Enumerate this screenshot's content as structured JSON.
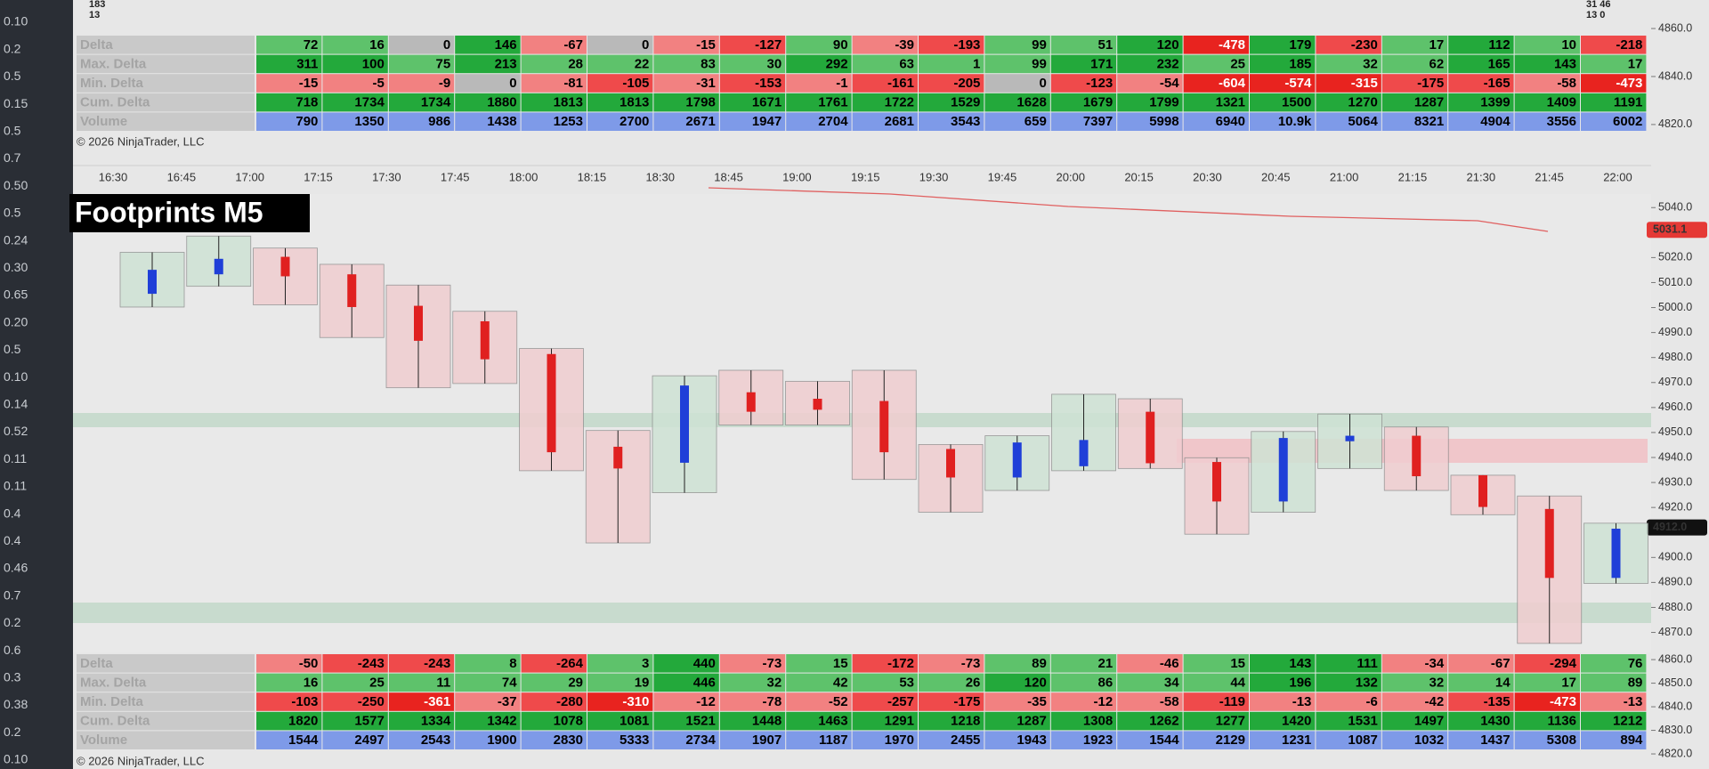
{
  "title": "Footprints M5",
  "copyright": "© 2026 NinjaTrader, LLC",
  "top_left_counts": [
    "183",
    "13"
  ],
  "top_right_counts": [
    "31 46",
    "13 0"
  ],
  "left_labels": [
    "0.10",
    "0.2",
    "0.5",
    "0.15",
    "0.5",
    "0.7",
    "0.50",
    "0.5",
    "0.24",
    "0.30",
    "0.65",
    "0.20",
    "0.5",
    "0.10",
    "0.14",
    "0.52",
    "0.11",
    "0.11",
    "0.4",
    "0.4",
    "0.46",
    "0.7",
    "0.2",
    "0.6",
    "0.3",
    "0.38",
    "0.2",
    "0.10"
  ],
  "top_table": {
    "row_labels": [
      "Delta",
      "Max. Delta",
      "Min. Delta",
      "Cum. Delta",
      "Volume"
    ],
    "rows": [
      [
        72,
        16,
        0,
        146,
        -67,
        0,
        -15,
        -127,
        90,
        -39,
        -193,
        99,
        51,
        120,
        -478,
        179,
        -230,
        17,
        112,
        10,
        -218
      ],
      [
        311,
        100,
        75,
        213,
        28,
        22,
        83,
        30,
        292,
        63,
        1,
        99,
        171,
        232,
        25,
        185,
        32,
        62,
        165,
        143,
        17
      ],
      [
        -15,
        -5,
        -9,
        0,
        -81,
        -105,
        -31,
        -153,
        -1,
        -161,
        -205,
        0,
        -123,
        -54,
        -604,
        -574,
        -315,
        -175,
        -165,
        -58,
        -473
      ],
      [
        718,
        1734,
        1734,
        1880,
        1813,
        1813,
        1798,
        1671,
        1761,
        1722,
        1529,
        1628,
        1679,
        1799,
        1321,
        1500,
        1270,
        1287,
        1399,
        1409,
        1191
      ],
      [
        790,
        1350,
        986,
        1438,
        1253,
        2700,
        2671,
        1947,
        2704,
        2681,
        3543,
        659,
        7397,
        5998,
        6940,
        {
          "value": 10900,
          "label": "10.9k"
        },
        5064,
        8321,
        4904,
        3556,
        6002
      ]
    ],
    "ylim": [
      4817,
      4861.5
    ],
    "yticks": [
      {
        "value": 4860,
        "label": "4860.0"
      },
      {
        "value": 4840,
        "label": "4840.0"
      },
      {
        "value": 4820,
        "label": "4820.0"
      }
    ]
  },
  "bottom_table": {
    "row_labels": [
      "Delta",
      "Max. Delta",
      "Min. Delta",
      "Cum. Delta",
      "Volume"
    ],
    "rows": [
      [
        -50,
        -243,
        -243,
        8,
        -264,
        3,
        440,
        -73,
        15,
        -172,
        -73,
        89,
        21,
        -46,
        15,
        143,
        111,
        -34,
        -67,
        -294,
        76
      ],
      [
        16,
        25,
        11,
        74,
        29,
        19,
        446,
        32,
        42,
        53,
        26,
        120,
        86,
        34,
        44,
        196,
        132,
        32,
        14,
        17,
        89
      ],
      [
        -103,
        -250,
        -361,
        -37,
        -280,
        -310,
        -12,
        -78,
        -52,
        -257,
        -175,
        -35,
        -12,
        -58,
        -119,
        -13,
        -6,
        -42,
        -135,
        -473,
        -13
      ],
      [
        1820,
        1577,
        1334,
        1342,
        1078,
        1081,
        1521,
        1448,
        1463,
        1291,
        1218,
        1287,
        1308,
        1262,
        1277,
        1420,
        1531,
        1497,
        1430,
        1136,
        1212
      ],
      [
        1544,
        2497,
        2543,
        1900,
        2830,
        5333,
        2734,
        1907,
        1187,
        1970,
        2455,
        1943,
        1923,
        1544,
        2129,
        1231,
        1087,
        1032,
        1437,
        5308,
        894
      ]
    ],
    "ylim": [
      4813.6,
      4862.3
    ],
    "yticks": [
      {
        "value": 4860,
        "label": "4860.0"
      },
      {
        "value": 4850,
        "label": "4850.0"
      },
      {
        "value": 4840,
        "label": "4840.0"
      },
      {
        "value": 4830,
        "label": "4830.0"
      },
      {
        "value": 4820,
        "label": "4820.0"
      }
    ]
  },
  "time_labels": [
    "16:30",
    "16:45",
    "17:00",
    "17:15",
    "17:30",
    "17:45",
    "18:00",
    "18:15",
    "18:30",
    "18:45",
    "19:00",
    "19:15",
    "19:30",
    "19:45",
    "20:00",
    "20:15",
    "20:30",
    "20:45",
    "21:00",
    "21:15",
    "21:30",
    "21:45",
    "22:00"
  ],
  "price_axis": {
    "ylim": [
      4862,
      5044
    ],
    "yticks": [
      {
        "value": 5040,
        "label": "5040.0"
      },
      {
        "value": 5020,
        "label": "5020.0"
      },
      {
        "value": 5010,
        "label": "5010.0"
      },
      {
        "value": 5000,
        "label": "5000.0"
      },
      {
        "value": 4990,
        "label": "4990.0"
      },
      {
        "value": 4980,
        "label": "4980.0"
      },
      {
        "value": 4970,
        "label": "4970.0"
      },
      {
        "value": 4960,
        "label": "4960.0"
      },
      {
        "value": 4950,
        "label": "4950.0"
      },
      {
        "value": 4940,
        "label": "4940.0"
      },
      {
        "value": 4930,
        "label": "4930.0"
      },
      {
        "value": 4920,
        "label": "4920.0"
      },
      {
        "value": 4900,
        "label": "4900.0"
      },
      {
        "value": 4890,
        "label": "4890.0"
      },
      {
        "value": 4880,
        "label": "4880.0"
      },
      {
        "value": 4870,
        "label": "4870.0"
      }
    ],
    "markers": [
      {
        "price": 5031.1,
        "color": "#e53935"
      },
      {
        "price": {
          "value": 4912,
          "label": "4912.0"
        },
        "color": "#111111"
      }
    ]
  },
  "candles": {
    "up_color": "#1f3fd8",
    "down_color": "#e02020",
    "open": [
      5005.5,
      5013.3,
      5020.3,
      5013.3,
      5000.7,
      4994.5,
      4981.4,
      4944.3,
      4937.9,
      4966.1,
      4963.5,
      4962.6,
      4943.4,
      4932.0,
      4936.5,
      4958.3,
      4938.2,
      4922.4,
      4946.5,
      4948.7,
      4932.9,
      4919.4,
      4891.8
    ],
    "high": [
      5022.1,
      5028.6,
      5023.8,
      5017.3,
      5009.0,
      4998.5,
      4983.6,
      4950.8,
      4972.7,
      4974.9,
      4970.5,
      4974.9,
      4945.2,
      4948.7,
      4965.3,
      4963.5,
      4939.9,
      4950.4,
      4957.4,
      4952.2,
      4932.9,
      4924.6,
      4913.7
    ],
    "low": [
      5000.2,
      5008.5,
      5001.1,
      4988.0,
      4967.9,
      4969.6,
      4934.7,
      4905.8,
      4925.9,
      4953.0,
      4953.0,
      4931.2,
      4918.1,
      4926.8,
      4934.7,
      4935.6,
      4909.3,
      4918.1,
      4935.6,
      4926.8,
      4917.1,
      4865.6,
      4889.6
    ],
    "close": [
      5015.1,
      5019.5,
      5012.5,
      5000.2,
      4986.7,
      4979.3,
      4942.1,
      4935.6,
      4968.8,
      4958.3,
      4959.1,
      4942.1,
      4932.0,
      4946.0,
      4947.0,
      4937.7,
      4922.4,
      4947.8,
      4948.7,
      4932.5,
      4920.2,
      4891.8,
      4911.5
    ]
  }
}
